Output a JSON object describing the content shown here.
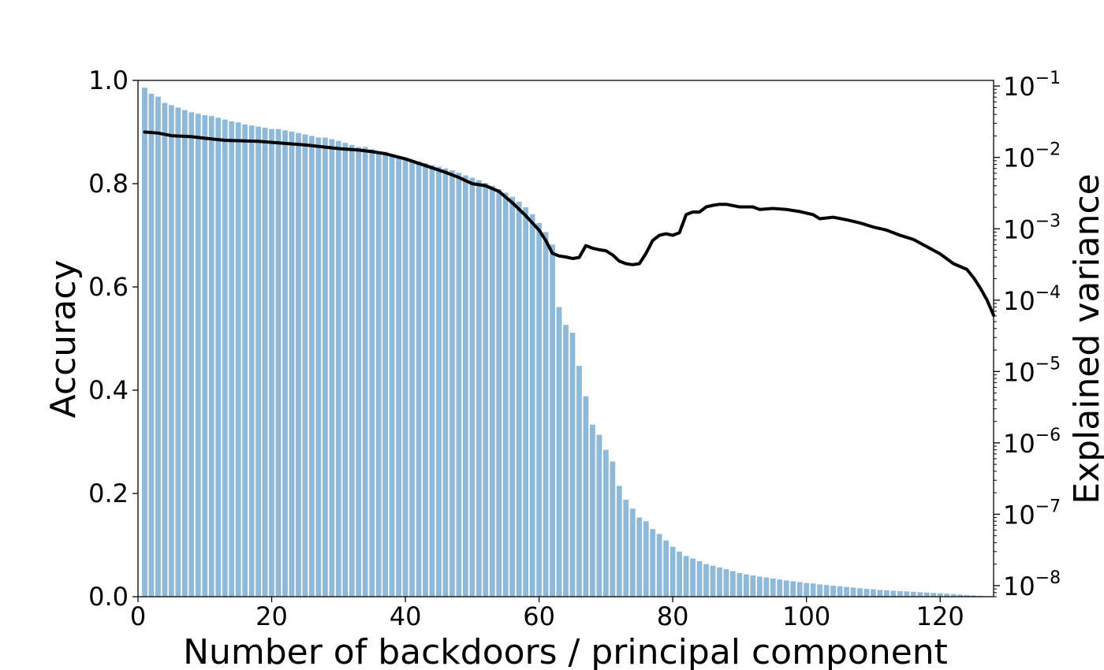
{
  "chart_data": {
    "type": "bar",
    "xlabel": "Number of backdoors / principal component",
    "ylabel": "Accuracy",
    "y2label": "Explained variance",
    "xlim": [
      0,
      128
    ],
    "ylim": [
      0,
      1.0
    ],
    "y2lim": [
      7e-09,
      0.12
    ],
    "y2scale": "log",
    "x_ticks": [
      "0",
      "20",
      "40",
      "60",
      "80",
      "100",
      "120"
    ],
    "y_ticks": [
      "0.0",
      "0.2",
      "0.4",
      "0.6",
      "0.8",
      "1.0"
    ],
    "y2_ticks": [
      {
        "base": "10",
        "exp": "−1"
      },
      {
        "base": "10",
        "exp": "−2"
      },
      {
        "base": "10",
        "exp": "−3"
      },
      {
        "base": "10",
        "exp": "−4"
      },
      {
        "base": "10",
        "exp": "−5"
      },
      {
        "base": "10",
        "exp": "−6"
      },
      {
        "base": "10",
        "exp": "−7"
      },
      {
        "base": "10",
        "exp": "−8"
      }
    ],
    "bar_color": "#8fb9d8",
    "line_color": "#000000",
    "bars": {
      "axis": "right",
      "x_start": 1,
      "values": [
        0.095,
        0.078,
        0.071,
        0.058,
        0.054,
        0.05,
        0.046,
        0.043,
        0.041,
        0.039,
        0.038,
        0.036,
        0.034,
        0.032,
        0.031,
        0.029,
        0.028,
        0.027,
        0.026,
        0.025,
        0.025,
        0.024,
        0.023,
        0.022,
        0.021,
        0.02,
        0.019,
        0.019,
        0.018,
        0.017,
        0.016,
        0.015,
        0.014,
        0.014,
        0.013,
        0.012,
        0.012,
        0.011,
        0.01,
        0.0098,
        0.0092,
        0.0088,
        0.0083,
        0.0078,
        0.0074,
        0.007,
        0.0066,
        0.0061,
        0.0056,
        0.0052,
        0.0048,
        0.0044,
        0.004,
        0.0036,
        0.0032,
        0.0028,
        0.0024,
        0.002,
        0.0016,
        0.0012,
        0.0009,
        0.0006,
        8e-05,
        4.5e-05,
        3.5e-05,
        1.2e-05,
        4.5e-06,
        1.8e-06,
        1.3e-06,
        8e-07,
        5.5e-07,
        2.5e-07,
        1.6e-07,
        1.2e-07,
        9e-08,
        8e-08,
        6.2e-08,
        5.3e-08,
        4.3e-08,
        3.5e-08,
        3e-08,
        2.6e-08,
        2.4e-08,
        2.2e-08,
        2e-08,
        1.9e-08,
        1.8e-08,
        1.7e-08,
        1.6e-08,
        1.5e-08,
        1.44e-08,
        1.39e-08,
        1.34e-08,
        1.3e-08,
        1.26e-08,
        1.22e-08,
        1.18e-08,
        1.15e-08,
        1.12e-08,
        1.09e-08,
        1.07e-08,
        1.04e-08,
        1.02e-08,
        1e-08,
        9.8e-09,
        9.6e-09,
        9.4e-09,
        9.2e-09,
        9e-09,
        8.9e-09,
        8.7e-09,
        8.6e-09,
        8.5e-09,
        8.4e-09,
        8.3e-09,
        8.2e-09,
        8.1e-09,
        8e-09,
        7.9e-09,
        7.8e-09,
        7.7e-09,
        7.6e-09,
        7.5e-09,
        7.4e-09,
        7.3e-09,
        7.2e-09,
        7.1e-09
      ]
    },
    "accuracy_line": {
      "axis": "left",
      "points": [
        [
          1,
          0.9
        ],
        [
          3,
          0.898
        ],
        [
          5,
          0.893
        ],
        [
          8,
          0.891
        ],
        [
          10,
          0.888
        ],
        [
          13,
          0.884
        ],
        [
          18,
          0.882
        ],
        [
          20,
          0.88
        ],
        [
          25,
          0.875
        ],
        [
          30,
          0.868
        ],
        [
          33,
          0.865
        ],
        [
          35,
          0.862
        ],
        [
          37,
          0.858
        ],
        [
          40,
          0.848
        ],
        [
          43,
          0.835
        ],
        [
          46,
          0.822
        ],
        [
          48,
          0.812
        ],
        [
          50,
          0.8
        ],
        [
          52,
          0.796
        ],
        [
          54,
          0.785
        ],
        [
          56,
          0.763
        ],
        [
          58,
          0.738
        ],
        [
          60,
          0.71
        ],
        [
          61,
          0.69
        ],
        [
          62,
          0.665
        ],
        [
          63,
          0.66
        ],
        [
          64,
          0.658
        ],
        [
          65,
          0.655
        ],
        [
          66,
          0.657
        ],
        [
          67,
          0.68
        ],
        [
          68,
          0.675
        ],
        [
          69,
          0.672
        ],
        [
          70,
          0.67
        ],
        [
          71,
          0.662
        ],
        [
          72,
          0.65
        ],
        [
          73,
          0.645
        ],
        [
          74,
          0.643
        ],
        [
          75,
          0.645
        ],
        [
          76,
          0.665
        ],
        [
          77,
          0.69
        ],
        [
          78,
          0.7
        ],
        [
          79,
          0.703
        ],
        [
          80,
          0.7
        ],
        [
          81,
          0.705
        ],
        [
          82,
          0.74
        ],
        [
          83,
          0.745
        ],
        [
          84,
          0.745
        ],
        [
          85,
          0.755
        ],
        [
          86,
          0.758
        ],
        [
          87,
          0.76
        ],
        [
          88,
          0.76
        ],
        [
          90,
          0.755
        ],
        [
          92,
          0.755
        ],
        [
          93,
          0.75
        ],
        [
          95,
          0.752
        ],
        [
          97,
          0.75
        ],
        [
          99,
          0.746
        ],
        [
          101,
          0.74
        ],
        [
          102,
          0.732
        ],
        [
          104,
          0.735
        ],
        [
          106,
          0.73
        ],
        [
          108,
          0.724
        ],
        [
          110,
          0.716
        ],
        [
          112,
          0.71
        ],
        [
          114,
          0.7
        ],
        [
          116,
          0.692
        ],
        [
          118,
          0.678
        ],
        [
          120,
          0.664
        ],
        [
          122,
          0.645
        ],
        [
          124,
          0.634
        ],
        [
          125,
          0.618
        ],
        [
          126,
          0.598
        ],
        [
          127,
          0.575
        ],
        [
          128,
          0.545
        ]
      ]
    }
  }
}
